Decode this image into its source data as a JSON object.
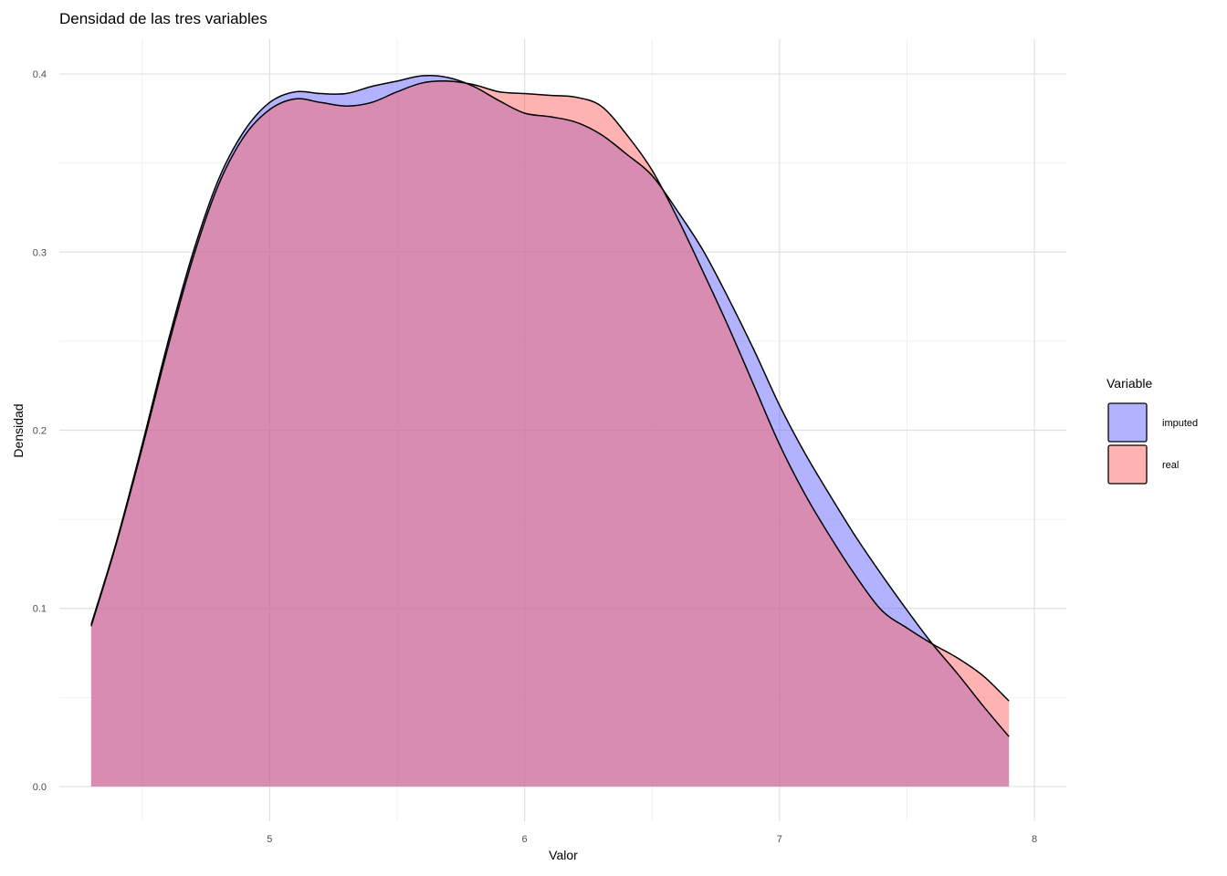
{
  "chart_data": {
    "type": "area",
    "title": "Densidad de las tres variables",
    "xlabel": "Valor",
    "ylabel": "Densidad",
    "xlim": [
      4.175,
      8.125
    ],
    "ylim": [
      -0.0195,
      0.4195
    ],
    "x_ticks": [
      5,
      6,
      7,
      8
    ],
    "x_tick_labels": [
      "5",
      "6",
      "7",
      "8"
    ],
    "y_ticks": [
      0.0,
      0.1,
      0.2,
      0.3,
      0.4
    ],
    "y_tick_labels": [
      "0.0",
      "0.1",
      "0.2",
      "0.3",
      "0.4"
    ],
    "grid": true,
    "legend": {
      "title": "Variable",
      "position": "right"
    },
    "series": [
      {
        "name": "imputed",
        "color": "#6666FF",
        "x": [
          4.3,
          4.4,
          4.5,
          4.6,
          4.7,
          4.8,
          4.9,
          5.0,
          5.1,
          5.2,
          5.3,
          5.4,
          5.5,
          5.6,
          5.7,
          5.8,
          5.9,
          6.0,
          6.1,
          6.2,
          6.3,
          6.4,
          6.5,
          6.6,
          6.7,
          6.8,
          6.9,
          7.0,
          7.1,
          7.2,
          7.3,
          7.4,
          7.5,
          7.6,
          7.7,
          7.8,
          7.9
        ],
        "y": [
          0.091,
          0.138,
          0.192,
          0.249,
          0.3,
          0.341,
          0.368,
          0.384,
          0.39,
          0.389,
          0.389,
          0.393,
          0.396,
          0.399,
          0.398,
          0.393,
          0.385,
          0.378,
          0.376,
          0.373,
          0.366,
          0.355,
          0.343,
          0.323,
          0.301,
          0.274,
          0.245,
          0.214,
          0.187,
          0.163,
          0.14,
          0.119,
          0.099,
          0.08,
          0.063,
          0.045,
          0.028
        ]
      },
      {
        "name": "real",
        "color": "#FF6666",
        "x": [
          4.3,
          4.4,
          4.5,
          4.6,
          4.7,
          4.8,
          4.9,
          5.0,
          5.1,
          5.2,
          5.3,
          5.4,
          5.5,
          5.6,
          5.7,
          5.8,
          5.9,
          6.0,
          6.1,
          6.2,
          6.3,
          6.4,
          6.5,
          6.6,
          6.7,
          6.8,
          6.9,
          7.0,
          7.1,
          7.2,
          7.3,
          7.4,
          7.5,
          7.6,
          7.7,
          7.8,
          7.9
        ],
        "y": [
          0.09,
          0.137,
          0.19,
          0.246,
          0.297,
          0.338,
          0.365,
          0.38,
          0.386,
          0.384,
          0.382,
          0.384,
          0.39,
          0.395,
          0.396,
          0.394,
          0.39,
          0.389,
          0.388,
          0.387,
          0.382,
          0.366,
          0.346,
          0.319,
          0.289,
          0.258,
          0.225,
          0.192,
          0.164,
          0.14,
          0.118,
          0.099,
          0.089,
          0.08,
          0.072,
          0.062,
          0.048
        ]
      }
    ]
  }
}
